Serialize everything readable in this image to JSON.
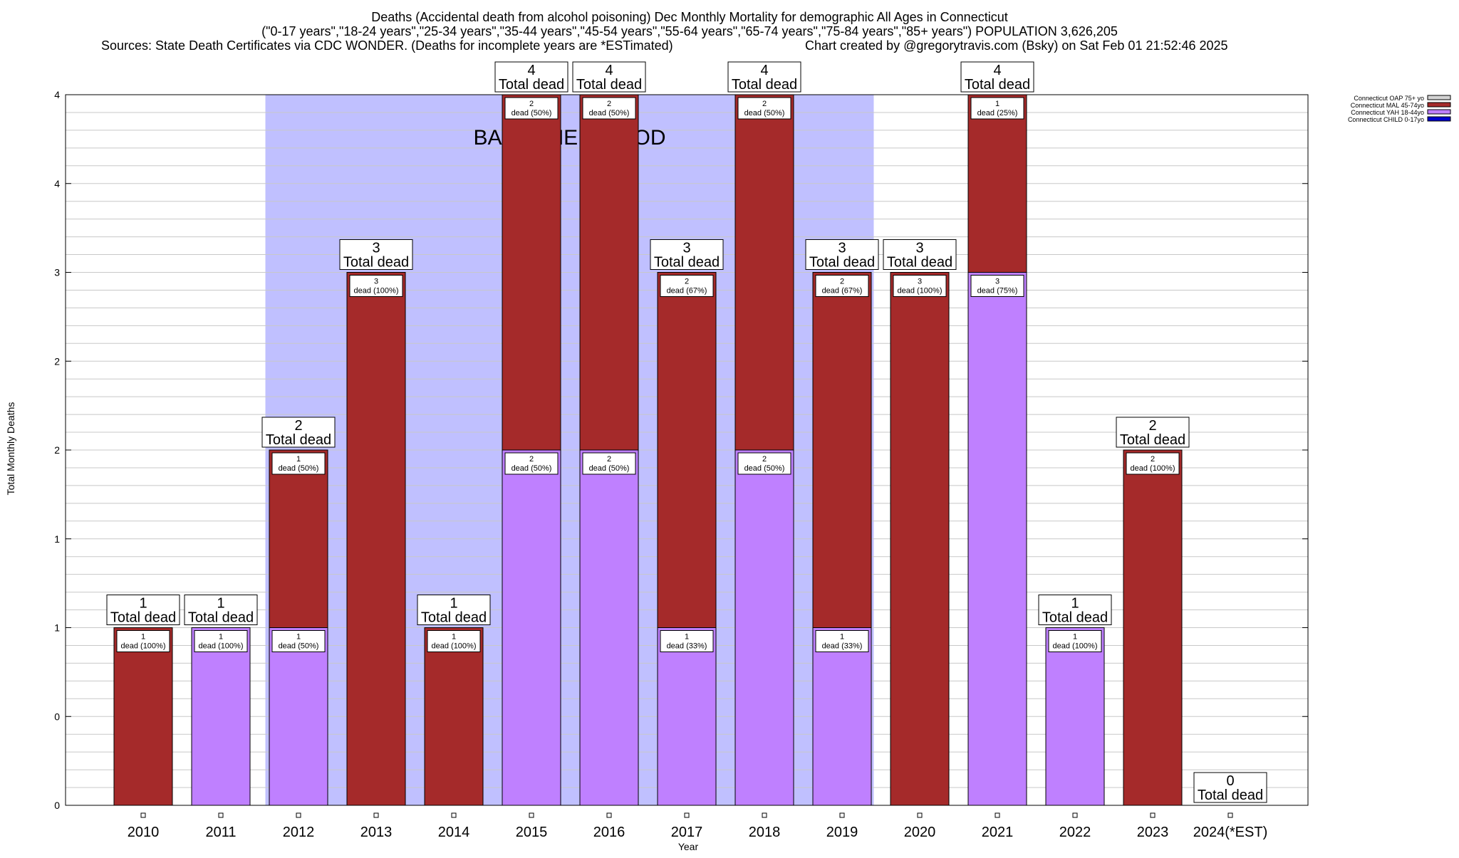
{
  "chart_data": {
    "type": "bar",
    "stacked": true,
    "title_lines": [
      "Deaths (Accidental death from alcohol poisoning) Dec Monthly Mortality for demographic All Ages in Connecticut",
      "(\"0-17 years\",\"18-24 years\",\"25-34 years\",\"35-44 years\",\"45-54 years\",\"55-64 years\",\"65-74 years\",\"75-84 years\",\"85+ years\") POPULATION 3,626,205",
      "Sources: State Death Certificates via CDC WONDER. (Deaths for incomplete years are *ESTimated)",
      "Chart created by @gregorytravis.com (Bsky) on Sat Feb 01 21:52:46 2025"
    ],
    "xlabel": "Year",
    "ylabel": "Total Monthly Deaths",
    "ylim": [
      0,
      4
    ],
    "y_tick_values": [
      0,
      0.5,
      1,
      1.5,
      2,
      2.5,
      3,
      3.5,
      4
    ],
    "y_tick_labels": [
      "0",
      "0",
      "1",
      "1",
      "2",
      "2",
      "3",
      "4",
      "4"
    ],
    "categories": [
      "2010",
      "2011",
      "2012",
      "2013",
      "2014",
      "2015",
      "2016",
      "2017",
      "2018",
      "2019",
      "2020",
      "2021",
      "2022",
      "2023",
      "2024(*EST)"
    ],
    "series": [
      {
        "name": "Connecticut OAP 75+ yo",
        "color": "#d3d3d3",
        "values": [
          0,
          0,
          0,
          0,
          0,
          0,
          0,
          0,
          0,
          0,
          0,
          0,
          0,
          0,
          0
        ]
      },
      {
        "name": "Connecticut MAL 45-74yo",
        "color": "#a52a2a",
        "values": [
          1,
          0,
          1,
          3,
          1,
          2,
          2,
          2,
          2,
          2,
          3,
          1,
          0,
          2,
          0
        ]
      },
      {
        "name": "Connecticut YAH 18-44yo",
        "color": "#bf80ff",
        "values": [
          0,
          1,
          1,
          0,
          0,
          2,
          2,
          1,
          2,
          1,
          0,
          3,
          1,
          0,
          0
        ]
      },
      {
        "name": "Connecticut CHILD 0-17yo",
        "color": "#0000cd",
        "values": [
          0,
          0,
          0,
          0,
          0,
          0,
          0,
          0,
          0,
          0,
          0,
          0,
          0,
          0,
          0
        ]
      }
    ],
    "segment_labels": [
      [
        {
          "count": "1",
          "pct": "dead (100%)"
        }
      ],
      [
        {
          "count": "1",
          "pct": "dead (100%)"
        }
      ],
      [
        {
          "count": "1",
          "pct": "dead (50%)"
        },
        {
          "count": "1",
          "pct": "dead (50%)"
        }
      ],
      [
        {
          "count": "3",
          "pct": "dead (100%)"
        }
      ],
      [
        {
          "count": "1",
          "pct": "dead (100%)"
        }
      ],
      [
        {
          "count": "2",
          "pct": "dead (50%)"
        },
        {
          "count": "2",
          "pct": "dead (50%)"
        }
      ],
      [
        {
          "count": "2",
          "pct": "dead (50%)"
        },
        {
          "count": "2",
          "pct": "dead (50%)"
        }
      ],
      [
        {
          "count": "1",
          "pct": "dead (33%)"
        },
        {
          "count": "2",
          "pct": "dead (67%)"
        }
      ],
      [
        {
          "count": "2",
          "pct": "dead (50%)"
        },
        {
          "count": "2",
          "pct": "dead (50%)"
        }
      ],
      [
        {
          "count": "1",
          "pct": "dead (33%)"
        },
        {
          "count": "2",
          "pct": "dead (67%)"
        }
      ],
      [
        {
          "count": "3",
          "pct": "dead (100%)"
        }
      ],
      [
        {
          "count": "3",
          "pct": "dead (75%)"
        },
        {
          "count": "1",
          "pct": "dead (25%)"
        }
      ],
      [
        {
          "count": "1",
          "pct": "dead (100%)"
        }
      ],
      [
        {
          "count": "2",
          "pct": "dead (100%)"
        }
      ],
      []
    ],
    "totals": [
      1,
      1,
      2,
      3,
      1,
      4,
      4,
      3,
      4,
      3,
      3,
      4,
      1,
      2,
      0
    ],
    "total_label": "Total dead",
    "baseline": {
      "label": "BASELINE PERIOD",
      "from": "2012",
      "to": "2019",
      "color": "#c0c0ff"
    },
    "legend_position": "top-right",
    "grid": "horizontal"
  }
}
